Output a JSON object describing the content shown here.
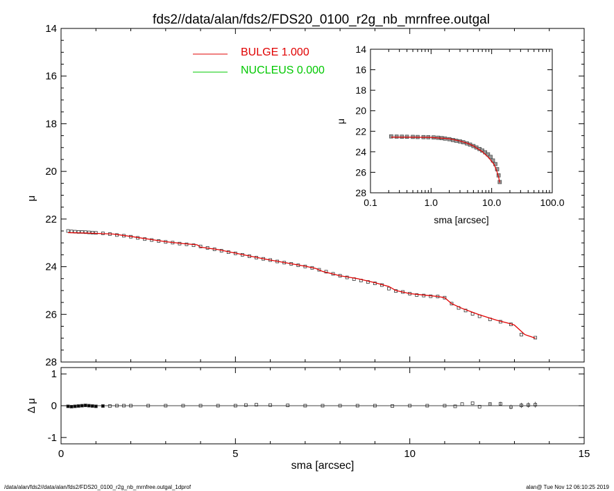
{
  "title": "fds2//data/alan/fds2/FDS20_0100_r2g_nb_mrnfree.outgal",
  "footer": {
    "left": "/data/alan/fds2//data/alan/fds2/FDS20_0100_r2g_nb_mrnfree.outgal_1dprof",
    "right": "alan@  Tue Nov 12 06:10:25 2019"
  },
  "colors": {
    "bulge": "#e00000",
    "nucleus": "#00c800",
    "data": "#000000",
    "axis": "#000000"
  },
  "legend": [
    {
      "label": "BULGE  1.000",
      "color": "#e00000"
    },
    {
      "label": "NUCLEUS  0.000",
      "color": "#00c800"
    }
  ],
  "chart_data": [
    {
      "id": "main",
      "type": "line",
      "xlabel": "",
      "ylabel": "μ",
      "xlim": [
        0,
        15
      ],
      "ylim": [
        28,
        14
      ],
      "y_inverted": true,
      "x_ticks": [
        0,
        5,
        10,
        15
      ],
      "y_ticks": [
        14,
        16,
        18,
        20,
        22,
        24,
        26,
        28
      ],
      "series": [
        {
          "name": "data",
          "style": "square-markers",
          "x": [
            0.2,
            0.3,
            0.4,
            0.5,
            0.6,
            0.7,
            0.8,
            0.9,
            1.0,
            1.2,
            1.4,
            1.6,
            1.8,
            2.0,
            2.2,
            2.4,
            2.6,
            2.8,
            3.0,
            3.2,
            3.4,
            3.6,
            3.8,
            4.0,
            4.2,
            4.4,
            4.6,
            4.8,
            5.0,
            5.2,
            5.4,
            5.6,
            5.8,
            6.0,
            6.2,
            6.4,
            6.6,
            6.8,
            7.0,
            7.2,
            7.4,
            7.6,
            7.8,
            8.0,
            8.2,
            8.4,
            8.6,
            8.8,
            9.0,
            9.2,
            9.4,
            9.6,
            9.8,
            10.0,
            10.2,
            10.4,
            10.6,
            10.8,
            11.0,
            11.2,
            11.4,
            11.6,
            11.8,
            12.0,
            12.3,
            12.6,
            12.9,
            13.2,
            13.6
          ],
          "y": [
            22.5,
            22.52,
            22.53,
            22.54,
            22.54,
            22.55,
            22.56,
            22.57,
            22.58,
            22.6,
            22.63,
            22.67,
            22.7,
            22.74,
            22.79,
            22.84,
            22.88,
            22.92,
            22.96,
            22.99,
            23.03,
            23.06,
            23.1,
            23.15,
            23.21,
            23.27,
            23.33,
            23.39,
            23.44,
            23.5,
            23.56,
            23.62,
            23.67,
            23.72,
            23.78,
            23.83,
            23.88,
            23.94,
            23.99,
            24.05,
            24.13,
            24.21,
            24.3,
            24.38,
            24.45,
            24.52,
            24.58,
            24.64,
            24.7,
            24.77,
            24.92,
            25.02,
            25.06,
            25.13,
            25.19,
            25.21,
            25.24,
            25.25,
            25.3,
            25.55,
            25.73,
            25.84,
            25.98,
            26.08,
            26.21,
            26.31,
            26.42,
            26.85,
            26.98
          ]
        },
        {
          "name": "BULGE",
          "style": "line",
          "x": [
            0.2,
            0.5,
            1.0,
            1.5,
            2.0,
            2.5,
            3.0,
            3.5,
            3.9,
            4.0,
            4.5,
            5.0,
            5.5,
            6.0,
            6.5,
            7.0,
            7.3,
            7.5,
            8.0,
            8.5,
            9.0,
            9.4,
            9.6,
            10.0,
            10.4,
            10.8,
            11.0,
            11.2,
            11.5,
            12.0,
            12.5,
            12.9,
            13.0,
            13.3,
            13.6
          ],
          "y": [
            22.57,
            22.58,
            22.6,
            22.63,
            22.73,
            22.84,
            22.95,
            23.03,
            23.08,
            23.18,
            23.28,
            23.43,
            23.58,
            23.72,
            23.85,
            23.98,
            24.07,
            24.2,
            24.38,
            24.5,
            24.67,
            24.83,
            25.0,
            25.13,
            25.19,
            25.25,
            25.3,
            25.55,
            25.75,
            26.02,
            26.25,
            26.4,
            26.45,
            26.85,
            27.0
          ]
        }
      ]
    },
    {
      "id": "residual",
      "type": "scatter",
      "xlabel": "sma [arcsec]",
      "ylabel": "Δ μ",
      "xlim": [
        0,
        15
      ],
      "ylim": [
        -1.2,
        1.2
      ],
      "x_ticks": [
        0,
        5,
        10,
        15
      ],
      "y_ticks": [
        -1,
        0,
        1
      ],
      "zero_line": true,
      "x": [
        0.2,
        0.3,
        0.4,
        0.5,
        0.6,
        0.7,
        0.8,
        0.9,
        1.0,
        1.2,
        1.4,
        1.6,
        1.8,
        2.0,
        2.5,
        3.0,
        3.5,
        4.0,
        4.5,
        5.0,
        5.3,
        5.6,
        6.0,
        6.5,
        7.0,
        7.5,
        8.0,
        8.5,
        9.0,
        9.5,
        10.0,
        10.5,
        11.0,
        11.3,
        11.5,
        11.8,
        12.0,
        12.3,
        12.6,
        12.9,
        13.2,
        13.4,
        13.6
      ],
      "y": [
        -0.02,
        -0.03,
        -0.02,
        -0.01,
        0.0,
        0.01,
        0.0,
        -0.01,
        -0.02,
        -0.01,
        -0.01,
        0.0,
        0.0,
        0.0,
        0.0,
        0.0,
        0.0,
        0.0,
        0.0,
        0.0,
        0.02,
        0.03,
        0.02,
        0.01,
        0.0,
        0.0,
        0.0,
        0.0,
        0.0,
        -0.01,
        0.0,
        0.0,
        0.0,
        -0.02,
        0.05,
        0.08,
        -0.03,
        0.05,
        0.06,
        -0.04,
        0.01,
        0.02,
        0.03
      ],
      "err": [
        0,
        0,
        0,
        0,
        0,
        0,
        0,
        0,
        0,
        0,
        0,
        0,
        0,
        0,
        0,
        0,
        0,
        0,
        0,
        0,
        0,
        0,
        0,
        0,
        0,
        0,
        0,
        0,
        0,
        0,
        0,
        0,
        0,
        0,
        0,
        0,
        0,
        0.05,
        0.06,
        0.07,
        0.08,
        0.08,
        0.09
      ]
    },
    {
      "id": "inset",
      "type": "line",
      "xlabel": "sma [arcsec]",
      "ylabel": "μ",
      "x_scale": "log",
      "xlim": [
        0.1,
        100.0
      ],
      "ylim": [
        28,
        14
      ],
      "y_inverted": true,
      "x_ticks": [
        0.1,
        1.0,
        10.0,
        100.0
      ],
      "x_tick_labels": [
        "0.1",
        "1.0",
        "10.0",
        "100.0"
      ],
      "y_ticks": [
        14,
        16,
        18,
        20,
        22,
        24,
        26,
        28
      ],
      "series": [
        {
          "name": "data",
          "style": "square-markers",
          "x": [
            0.22,
            0.27,
            0.33,
            0.4,
            0.5,
            0.6,
            0.75,
            0.9,
            1.1,
            1.3,
            1.5,
            1.7,
            2.0,
            2.3,
            2.6,
            3.0,
            3.4,
            3.9,
            4.4,
            5.0,
            5.6,
            6.3,
            7.0,
            7.8,
            8.7,
            9.6,
            10.5,
            11.5,
            12.3,
            13.0,
            13.6
          ],
          "y": [
            22.5,
            22.52,
            22.53,
            22.54,
            22.55,
            22.56,
            22.57,
            22.58,
            22.6,
            22.63,
            22.67,
            22.71,
            22.77,
            22.85,
            22.92,
            22.99,
            23.07,
            23.18,
            23.3,
            23.44,
            23.58,
            23.73,
            23.88,
            24.05,
            24.25,
            24.5,
            24.85,
            25.2,
            25.7,
            26.3,
            26.95
          ]
        },
        {
          "name": "BULGE",
          "style": "line",
          "x": [
            0.22,
            0.5,
            1.0,
            2.0,
            3.0,
            4.0,
            5.0,
            7.0,
            9.0,
            11.0,
            12.0,
            13.0,
            13.6
          ],
          "y": [
            22.57,
            22.58,
            22.6,
            22.73,
            22.95,
            23.18,
            23.43,
            23.98,
            24.6,
            25.25,
            25.8,
            26.45,
            27.0
          ]
        }
      ]
    }
  ]
}
